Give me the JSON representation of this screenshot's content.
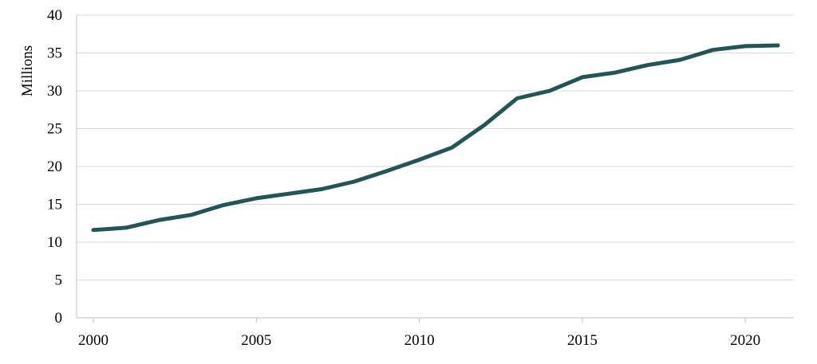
{
  "chart_data": {
    "type": "line",
    "title": "",
    "xlabel": "",
    "ylabel": "Millions",
    "xlim": [
      2000,
      2021
    ],
    "ylim": [
      0,
      40
    ],
    "x_ticks": [
      2000,
      2005,
      2010,
      2015,
      2020
    ],
    "y_ticks": [
      0,
      5,
      10,
      15,
      20,
      25,
      30,
      35,
      40
    ],
    "grid": "horizontal",
    "legend": "none",
    "x": [
      2000,
      2001,
      2002,
      2003,
      2004,
      2005,
      2006,
      2007,
      2008,
      2009,
      2010,
      2011,
      2012,
      2013,
      2014,
      2015,
      2016,
      2017,
      2018,
      2019,
      2020,
      2021
    ],
    "series": [
      {
        "color": "#235557",
        "values": [
          11.6,
          11.9,
          12.9,
          13.6,
          14.9,
          15.8,
          16.4,
          17.0,
          18.0,
          19.4,
          20.9,
          22.5,
          25.5,
          29.0,
          30.0,
          31.8,
          32.4,
          33.4,
          34.1,
          35.4,
          35.9,
          36.0
        ]
      }
    ]
  }
}
